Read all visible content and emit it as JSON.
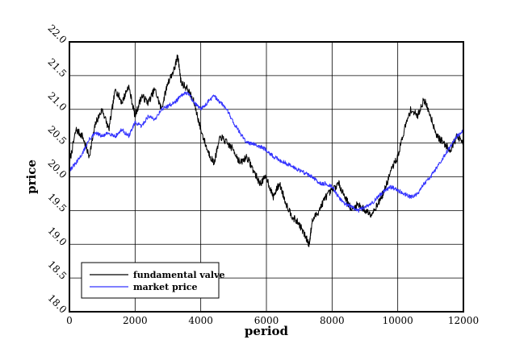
{
  "chart_data": {
    "type": "line",
    "xlabel": "period",
    "ylabel": "price",
    "xlim": [
      0,
      12000
    ],
    "ylim": [
      18.0,
      22.0
    ],
    "xticks": [
      0,
      2000,
      4000,
      6000,
      8000,
      10000,
      12000
    ],
    "xtick_labels": [
      "0",
      "2000",
      "4000",
      "6000",
      "8000",
      "10000",
      "12000"
    ],
    "yticks": [
      18.0,
      18.5,
      19.0,
      19.5,
      20.0,
      20.5,
      21.0,
      21.5,
      22.0
    ],
    "ytick_labels": [
      "18.0",
      "18.5",
      "19.0",
      "19.5",
      "20.0",
      "20.5",
      "21.0",
      "21.5",
      "22.0"
    ],
    "grid": true,
    "legend_position": "bottom-left",
    "series": [
      {
        "name": "fundamental valve",
        "color": "#000000",
        "x": [
          0,
          200,
          400,
          600,
          800,
          1000,
          1200,
          1400,
          1600,
          1800,
          2000,
          2200,
          2400,
          2600,
          2800,
          3000,
          3200,
          3300,
          3400,
          3600,
          3800,
          4000,
          4200,
          4400,
          4600,
          4800,
          5000,
          5200,
          5400,
          5600,
          5800,
          6000,
          6200,
          6400,
          6600,
          6800,
          7000,
          7200,
          7300,
          7400,
          7600,
          7800,
          8000,
          8200,
          8400,
          8600,
          8800,
          9000,
          9200,
          9400,
          9600,
          9800,
          10000,
          10200,
          10400,
          10600,
          10800,
          11000,
          11200,
          11400,
          11600,
          11800,
          12000
        ],
        "values": [
          20.2,
          20.7,
          20.6,
          20.3,
          20.8,
          21.0,
          20.7,
          21.3,
          21.1,
          21.35,
          20.9,
          21.2,
          21.1,
          21.3,
          21.0,
          21.4,
          21.6,
          21.8,
          21.4,
          21.3,
          21.1,
          20.7,
          20.4,
          20.2,
          20.6,
          20.5,
          20.4,
          20.2,
          20.3,
          20.1,
          19.9,
          20.0,
          19.7,
          19.9,
          19.6,
          19.4,
          19.3,
          19.1,
          19.0,
          19.35,
          19.5,
          19.7,
          19.8,
          19.9,
          19.7,
          19.5,
          19.6,
          19.5,
          19.45,
          19.6,
          19.8,
          20.1,
          20.3,
          20.7,
          21.0,
          20.9,
          21.15,
          20.9,
          20.6,
          20.5,
          20.4,
          20.6,
          20.5
        ]
      },
      {
        "name": "market price",
        "color": "#3333ff",
        "x": [
          0,
          200,
          400,
          600,
          800,
          1000,
          1200,
          1400,
          1600,
          1800,
          2000,
          2200,
          2400,
          2600,
          2800,
          3000,
          3200,
          3400,
          3600,
          3800,
          4000,
          4200,
          4400,
          4600,
          4800,
          5000,
          5200,
          5400,
          5600,
          5800,
          6000,
          6200,
          6400,
          6600,
          6800,
          7000,
          7200,
          7400,
          7600,
          7800,
          8000,
          8200,
          8400,
          8600,
          8800,
          9000,
          9200,
          9400,
          9600,
          9800,
          10000,
          10200,
          10400,
          10600,
          10800,
          11000,
          11200,
          11400,
          11600,
          11800,
          12000
        ],
        "values": [
          20.1,
          20.2,
          20.35,
          20.55,
          20.65,
          20.6,
          20.65,
          20.6,
          20.7,
          20.6,
          20.8,
          20.75,
          20.9,
          20.85,
          21.0,
          21.05,
          21.1,
          21.2,
          21.25,
          21.1,
          21.0,
          21.1,
          21.2,
          21.1,
          21.0,
          20.8,
          20.65,
          20.5,
          20.5,
          20.45,
          20.4,
          20.3,
          20.25,
          20.2,
          20.15,
          20.1,
          20.05,
          20.0,
          19.9,
          19.9,
          19.85,
          19.7,
          19.6,
          19.55,
          19.5,
          19.55,
          19.6,
          19.7,
          19.8,
          19.85,
          19.8,
          19.75,
          19.7,
          19.75,
          19.9,
          20.0,
          20.15,
          20.3,
          20.45,
          20.6,
          20.7
        ]
      }
    ]
  }
}
